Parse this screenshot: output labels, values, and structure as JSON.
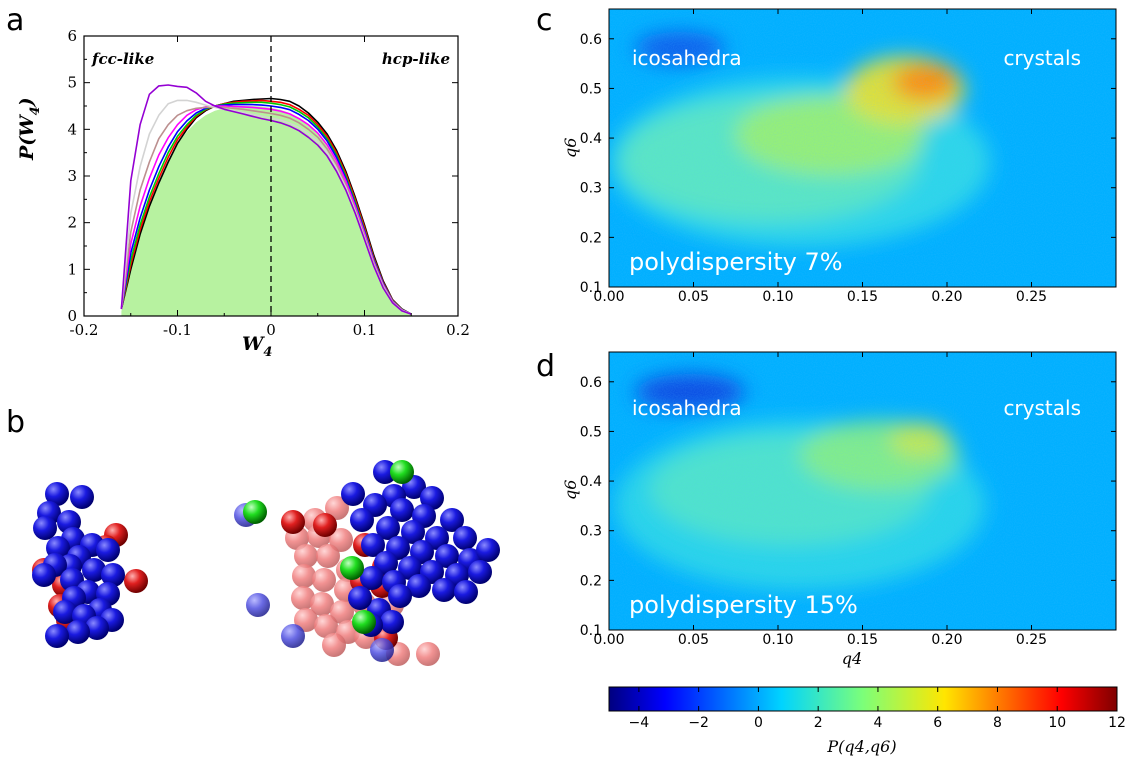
{
  "panel_letters": {
    "a": "a",
    "b": "b",
    "c": "c",
    "d": "d"
  },
  "chart_data": [
    {
      "id": "a",
      "type": "line",
      "annotations": {
        "left": "fcc-like",
        "right": "hcp-like"
      },
      "xlabel": "W4",
      "ylabel": "P(W4)",
      "xlim": [
        -0.2,
        0.2
      ],
      "ylim": [
        0,
        6
      ],
      "xticks": [
        -0.2,
        -0.1,
        0,
        0.1,
        0.2
      ],
      "xtick_labels": [
        "-0.2",
        "-0.1",
        "0",
        "0.1",
        "0.2"
      ],
      "yticks": [
        0,
        1,
        2,
        3,
        4,
        5,
        6
      ],
      "ytick_labels": [
        "0",
        "1",
        "2",
        "3",
        "4",
        "5",
        "6"
      ],
      "vline_x": 0,
      "x": [
        -0.16,
        -0.15,
        -0.14,
        -0.13,
        -0.12,
        -0.11,
        -0.1,
        -0.09,
        -0.08,
        -0.07,
        -0.06,
        -0.05,
        -0.04,
        -0.03,
        -0.02,
        -0.01,
        0.0,
        0.01,
        0.02,
        0.03,
        0.04,
        0.05,
        0.06,
        0.07,
        0.08,
        0.09,
        0.1,
        0.11,
        0.12,
        0.13,
        0.14,
        0.15
      ],
      "fill_series": {
        "color": "#b7f2a0",
        "values": [
          0.1,
          1.0,
          1.8,
          2.4,
          2.9,
          3.35,
          3.7,
          3.95,
          4.15,
          4.3,
          4.4,
          4.45,
          4.48,
          4.5,
          4.5,
          4.49,
          4.46,
          4.42,
          4.35,
          4.25,
          4.1,
          3.9,
          3.65,
          3.3,
          2.9,
          2.4,
          1.8,
          1.2,
          0.7,
          0.35,
          0.15,
          0.05
        ]
      },
      "series": [
        {
          "color": "#000000",
          "values": [
            0.15,
            1.0,
            1.75,
            2.35,
            2.85,
            3.3,
            3.7,
            4.0,
            4.25,
            4.4,
            4.5,
            4.55,
            4.6,
            4.62,
            4.64,
            4.65,
            4.66,
            4.64,
            4.6,
            4.5,
            4.35,
            4.15,
            3.9,
            3.55,
            3.1,
            2.55,
            1.95,
            1.3,
            0.75,
            0.35,
            0.15,
            0.04
          ]
        },
        {
          "color": "#ff0000",
          "values": [
            0.15,
            1.1,
            1.85,
            2.45,
            2.95,
            3.4,
            3.78,
            4.05,
            4.28,
            4.42,
            4.5,
            4.55,
            4.58,
            4.6,
            4.61,
            4.62,
            4.6,
            4.58,
            4.53,
            4.43,
            4.3,
            4.1,
            3.85,
            3.5,
            3.05,
            2.5,
            1.9,
            1.25,
            0.72,
            0.34,
            0.14,
            0.04
          ]
        },
        {
          "color": "#00cc00",
          "values": [
            0.15,
            1.2,
            1.95,
            2.55,
            3.05,
            3.5,
            3.85,
            4.1,
            4.3,
            4.43,
            4.5,
            4.54,
            4.56,
            4.57,
            4.58,
            4.58,
            4.56,
            4.53,
            4.48,
            4.38,
            4.25,
            4.05,
            3.8,
            3.45,
            3.0,
            2.45,
            1.85,
            1.22,
            0.7,
            0.33,
            0.14,
            0.04
          ]
        },
        {
          "color": "#0000ff",
          "values": [
            0.15,
            1.35,
            2.1,
            2.7,
            3.2,
            3.62,
            3.95,
            4.18,
            4.35,
            4.45,
            4.5,
            4.52,
            4.53,
            4.53,
            4.53,
            4.52,
            4.5,
            4.47,
            4.42,
            4.32,
            4.19,
            4.0,
            3.75,
            3.4,
            2.95,
            2.4,
            1.82,
            1.2,
            0.69,
            0.32,
            0.13,
            0.04
          ]
        },
        {
          "color": "#ff00ff",
          "values": [
            0.15,
            1.55,
            2.35,
            2.95,
            3.45,
            3.82,
            4.1,
            4.3,
            4.42,
            4.48,
            4.5,
            4.5,
            4.49,
            4.48,
            4.47,
            4.45,
            4.43,
            4.39,
            4.33,
            4.23,
            4.1,
            3.92,
            3.67,
            3.33,
            2.9,
            2.36,
            1.78,
            1.17,
            0.67,
            0.31,
            0.13,
            0.04
          ]
        },
        {
          "color": "#bc8f8f",
          "values": [
            0.15,
            1.8,
            2.7,
            3.3,
            3.8,
            4.1,
            4.3,
            4.4,
            4.45,
            4.47,
            4.48,
            4.47,
            4.45,
            4.43,
            4.4,
            4.37,
            4.34,
            4.3,
            4.24,
            4.14,
            4.0,
            3.83,
            3.58,
            3.25,
            2.82,
            2.3,
            1.73,
            1.14,
            0.65,
            0.3,
            0.12,
            0.04
          ]
        },
        {
          "color": "#d3d3d3",
          "values": [
            0.15,
            2.2,
            3.2,
            3.9,
            4.3,
            4.55,
            4.62,
            4.62,
            4.58,
            4.52,
            4.47,
            4.43,
            4.4,
            4.36,
            4.32,
            4.28,
            4.24,
            4.2,
            4.13,
            4.04,
            3.9,
            3.73,
            3.5,
            3.17,
            2.76,
            2.25,
            1.68,
            1.1,
            0.63,
            0.29,
            0.12,
            0.04
          ]
        },
        {
          "color": "#9400d3",
          "values": [
            0.15,
            2.9,
            4.1,
            4.75,
            4.93,
            4.95,
            4.92,
            4.9,
            4.78,
            4.6,
            4.5,
            4.43,
            4.38,
            4.33,
            4.28,
            4.23,
            4.19,
            4.14,
            4.07,
            3.97,
            3.83,
            3.66,
            3.43,
            3.1,
            2.7,
            2.2,
            1.64,
            1.07,
            0.6,
            0.28,
            0.11,
            0.04
          ]
        }
      ]
    },
    {
      "id": "c",
      "type": "heatmap",
      "labels": {
        "topleft": "icosahedra",
        "topright": "crystals",
        "bottom": "polydispersity 7%"
      },
      "xlabel": "",
      "ylabel": "q6",
      "xlim": [
        0,
        0.3
      ],
      "ylim": [
        0.1,
        0.66
      ],
      "xtick_labels": [
        "0.00",
        "0.05",
        "0.10",
        "0.15",
        "0.20",
        "0.25"
      ],
      "ytick_labels": [
        "0.1",
        "0.2",
        "0.3",
        "0.4",
        "0.5",
        "0.6"
      ],
      "background": "#00b0ff"
    },
    {
      "id": "d",
      "type": "heatmap",
      "labels": {
        "topleft": "icosahedra",
        "topright": "crystals",
        "bottom": "polydispersity 15%"
      },
      "xlabel": "q4",
      "ylabel": "q6",
      "xlim": [
        0,
        0.3
      ],
      "ylim": [
        0.1,
        0.66
      ],
      "xtick_labels": [
        "0.00",
        "0.05",
        "0.10",
        "0.15",
        "0.20",
        "0.25"
      ],
      "ytick_labels": [
        "0.1",
        "0.2",
        "0.3",
        "0.4",
        "0.5",
        "0.6"
      ],
      "background": "#00b0ff"
    },
    {
      "id": "colorbar",
      "type": "colorbar",
      "range": [
        -5,
        12
      ],
      "tick_labels": [
        "−4",
        "−2",
        "0",
        "2",
        "4",
        "6",
        "8",
        "10",
        "12"
      ],
      "label": "P(q4,q6)"
    }
  ],
  "panel_b": {
    "colors": {
      "blue": "#0a0ae6",
      "red": "#e01a1a",
      "green": "#19d919"
    }
  }
}
